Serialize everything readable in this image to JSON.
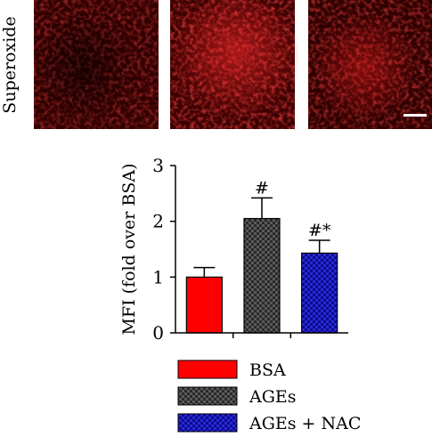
{
  "panel_label": "Superoxide",
  "micrographs": [
    {
      "name": "BSA"
    },
    {
      "name": "AGEs"
    },
    {
      "name": "AGEs + NAC"
    }
  ],
  "colors": {
    "micrograph_bg": "#2a0000",
    "micrograph_cell": "#d01010",
    "bsa": "#ff0000",
    "ages": "#3a3a3a",
    "ages_nac": "#1a1ab0",
    "scale_bar": "#ffffff"
  },
  "chart_data": {
    "type": "bar",
    "categories": [
      "BSA",
      "AGEs",
      "AGEs + NAC"
    ],
    "values": [
      1.0,
      2.05,
      1.43
    ],
    "errors": [
      0.17,
      0.37,
      0.23
    ],
    "annotations": [
      "",
      "#",
      "#*"
    ],
    "ylabel": "MFI (fold over BSA)",
    "ylim": [
      0,
      3
    ],
    "yticks": [
      0,
      1,
      2,
      3
    ],
    "legend": {
      "placement": "bottom",
      "entries": [
        "BSA",
        "AGEs",
        "AGEs + NAC"
      ]
    },
    "grid": false,
    "fill_patterns": [
      "solid",
      "checker",
      "checker"
    ]
  }
}
